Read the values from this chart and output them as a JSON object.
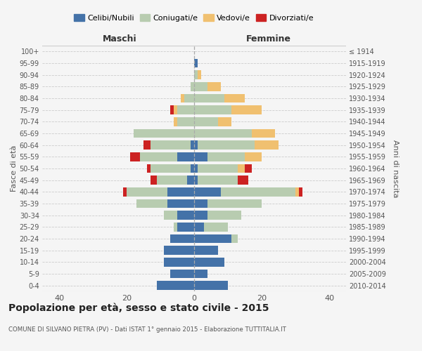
{
  "age_groups": [
    "0-4",
    "5-9",
    "10-14",
    "15-19",
    "20-24",
    "25-29",
    "30-34",
    "35-39",
    "40-44",
    "45-49",
    "50-54",
    "55-59",
    "60-64",
    "65-69",
    "70-74",
    "75-79",
    "80-84",
    "85-89",
    "90-94",
    "95-99",
    "100+"
  ],
  "birth_years": [
    "2010-2014",
    "2005-2009",
    "2000-2004",
    "1995-1999",
    "1990-1994",
    "1985-1989",
    "1980-1984",
    "1975-1979",
    "1970-1974",
    "1965-1969",
    "1960-1964",
    "1955-1959",
    "1950-1954",
    "1945-1949",
    "1940-1944",
    "1935-1939",
    "1930-1934",
    "1925-1929",
    "1920-1924",
    "1915-1919",
    "≤ 1914"
  ],
  "colors": {
    "celibi": "#4472A8",
    "coniugati": "#B8CCB0",
    "vedovi": "#F0C070",
    "divorziati": "#CC2222"
  },
  "maschi": {
    "celibi": [
      11,
      7,
      9,
      9,
      7,
      5,
      5,
      8,
      8,
      2,
      1,
      5,
      1,
      0,
      0,
      0,
      0,
      0,
      0,
      0,
      0
    ],
    "coniugati": [
      0,
      0,
      0,
      0,
      0,
      1,
      4,
      9,
      12,
      9,
      12,
      11,
      12,
      18,
      5,
      5,
      3,
      1,
      0,
      0,
      0
    ],
    "vedovi": [
      0,
      0,
      0,
      0,
      0,
      0,
      0,
      0,
      0,
      0,
      0,
      0,
      0,
      0,
      1,
      1,
      1,
      0,
      0,
      0,
      0
    ],
    "divorziati": [
      0,
      0,
      0,
      0,
      0,
      0,
      0,
      0,
      1,
      2,
      1,
      3,
      2,
      0,
      0,
      1,
      0,
      0,
      0,
      0,
      0
    ]
  },
  "femmine": {
    "celibi": [
      10,
      4,
      9,
      7,
      11,
      3,
      4,
      4,
      8,
      1,
      1,
      4,
      1,
      0,
      0,
      0,
      0,
      0,
      0,
      1,
      0
    ],
    "coniugati": [
      0,
      0,
      0,
      0,
      2,
      7,
      10,
      16,
      22,
      12,
      12,
      11,
      17,
      17,
      7,
      11,
      9,
      4,
      1,
      0,
      0
    ],
    "vedovi": [
      0,
      0,
      0,
      0,
      0,
      0,
      0,
      0,
      1,
      0,
      2,
      5,
      7,
      7,
      4,
      9,
      6,
      4,
      1,
      0,
      0
    ],
    "divorziati": [
      0,
      0,
      0,
      0,
      0,
      0,
      0,
      0,
      1,
      3,
      2,
      0,
      0,
      0,
      0,
      0,
      0,
      0,
      0,
      0,
      0
    ]
  },
  "title": "Popolazione per età, sesso e stato civile - 2015",
  "subtitle": "COMUNE DI SILVANO PIETRA (PV) - Dati ISTAT 1° gennaio 2015 - Elaborazione TUTTITALIA.IT",
  "xlabel_left": "Maschi",
  "xlabel_right": "Femmine",
  "ylabel_left": "Fasce di età",
  "ylabel_right": "Anni di nascita",
  "legend_labels": [
    "Celibi/Nubili",
    "Coniugati/e",
    "Vedovi/e",
    "Divorziati/e"
  ],
  "xlim": 45,
  "background_color": "#f5f5f5",
  "grid_color": "#cccccc"
}
